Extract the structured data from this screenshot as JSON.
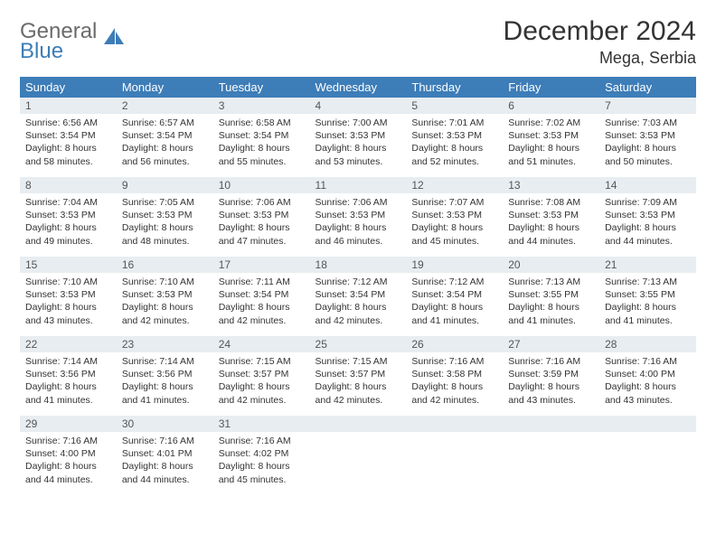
{
  "logo": {
    "text1": "General",
    "text2": "Blue",
    "icon_color": "#3d7db8"
  },
  "title": "December 2024",
  "location": "Mega, Serbia",
  "header_bg": "#3d7db8",
  "daynum_bg": "#e8edf1",
  "border_color": "#b8c5d1",
  "days_of_week": [
    "Sunday",
    "Monday",
    "Tuesday",
    "Wednesday",
    "Thursday",
    "Friday",
    "Saturday"
  ],
  "weeks": [
    [
      {
        "n": "1",
        "sunrise": "6:56 AM",
        "sunset": "3:54 PM",
        "daylight": "8 hours and 58 minutes."
      },
      {
        "n": "2",
        "sunrise": "6:57 AM",
        "sunset": "3:54 PM",
        "daylight": "8 hours and 56 minutes."
      },
      {
        "n": "3",
        "sunrise": "6:58 AM",
        "sunset": "3:54 PM",
        "daylight": "8 hours and 55 minutes."
      },
      {
        "n": "4",
        "sunrise": "7:00 AM",
        "sunset": "3:53 PM",
        "daylight": "8 hours and 53 minutes."
      },
      {
        "n": "5",
        "sunrise": "7:01 AM",
        "sunset": "3:53 PM",
        "daylight": "8 hours and 52 minutes."
      },
      {
        "n": "6",
        "sunrise": "7:02 AM",
        "sunset": "3:53 PM",
        "daylight": "8 hours and 51 minutes."
      },
      {
        "n": "7",
        "sunrise": "7:03 AM",
        "sunset": "3:53 PM",
        "daylight": "8 hours and 50 minutes."
      }
    ],
    [
      {
        "n": "8",
        "sunrise": "7:04 AM",
        "sunset": "3:53 PM",
        "daylight": "8 hours and 49 minutes."
      },
      {
        "n": "9",
        "sunrise": "7:05 AM",
        "sunset": "3:53 PM",
        "daylight": "8 hours and 48 minutes."
      },
      {
        "n": "10",
        "sunrise": "7:06 AM",
        "sunset": "3:53 PM",
        "daylight": "8 hours and 47 minutes."
      },
      {
        "n": "11",
        "sunrise": "7:06 AM",
        "sunset": "3:53 PM",
        "daylight": "8 hours and 46 minutes."
      },
      {
        "n": "12",
        "sunrise": "7:07 AM",
        "sunset": "3:53 PM",
        "daylight": "8 hours and 45 minutes."
      },
      {
        "n": "13",
        "sunrise": "7:08 AM",
        "sunset": "3:53 PM",
        "daylight": "8 hours and 44 minutes."
      },
      {
        "n": "14",
        "sunrise": "7:09 AM",
        "sunset": "3:53 PM",
        "daylight": "8 hours and 44 minutes."
      }
    ],
    [
      {
        "n": "15",
        "sunrise": "7:10 AM",
        "sunset": "3:53 PM",
        "daylight": "8 hours and 43 minutes."
      },
      {
        "n": "16",
        "sunrise": "7:10 AM",
        "sunset": "3:53 PM",
        "daylight": "8 hours and 42 minutes."
      },
      {
        "n": "17",
        "sunrise": "7:11 AM",
        "sunset": "3:54 PM",
        "daylight": "8 hours and 42 minutes."
      },
      {
        "n": "18",
        "sunrise": "7:12 AM",
        "sunset": "3:54 PM",
        "daylight": "8 hours and 42 minutes."
      },
      {
        "n": "19",
        "sunrise": "7:12 AM",
        "sunset": "3:54 PM",
        "daylight": "8 hours and 41 minutes."
      },
      {
        "n": "20",
        "sunrise": "7:13 AM",
        "sunset": "3:55 PM",
        "daylight": "8 hours and 41 minutes."
      },
      {
        "n": "21",
        "sunrise": "7:13 AM",
        "sunset": "3:55 PM",
        "daylight": "8 hours and 41 minutes."
      }
    ],
    [
      {
        "n": "22",
        "sunrise": "7:14 AM",
        "sunset": "3:56 PM",
        "daylight": "8 hours and 41 minutes."
      },
      {
        "n": "23",
        "sunrise": "7:14 AM",
        "sunset": "3:56 PM",
        "daylight": "8 hours and 41 minutes."
      },
      {
        "n": "24",
        "sunrise": "7:15 AM",
        "sunset": "3:57 PM",
        "daylight": "8 hours and 42 minutes."
      },
      {
        "n": "25",
        "sunrise": "7:15 AM",
        "sunset": "3:57 PM",
        "daylight": "8 hours and 42 minutes."
      },
      {
        "n": "26",
        "sunrise": "7:16 AM",
        "sunset": "3:58 PM",
        "daylight": "8 hours and 42 minutes."
      },
      {
        "n": "27",
        "sunrise": "7:16 AM",
        "sunset": "3:59 PM",
        "daylight": "8 hours and 43 minutes."
      },
      {
        "n": "28",
        "sunrise": "7:16 AM",
        "sunset": "4:00 PM",
        "daylight": "8 hours and 43 minutes."
      }
    ],
    [
      {
        "n": "29",
        "sunrise": "7:16 AM",
        "sunset": "4:00 PM",
        "daylight": "8 hours and 44 minutes."
      },
      {
        "n": "30",
        "sunrise": "7:16 AM",
        "sunset": "4:01 PM",
        "daylight": "8 hours and 44 minutes."
      },
      {
        "n": "31",
        "sunrise": "7:16 AM",
        "sunset": "4:02 PM",
        "daylight": "8 hours and 45 minutes."
      },
      null,
      null,
      null,
      null
    ]
  ],
  "labels": {
    "sunrise": "Sunrise:",
    "sunset": "Sunset:",
    "daylight": "Daylight:"
  }
}
